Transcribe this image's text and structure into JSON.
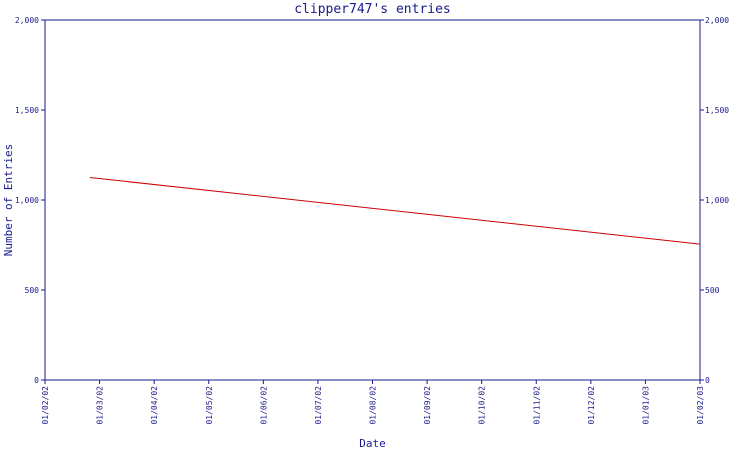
{
  "chart_data": {
    "type": "line",
    "title": "clipper747's entries",
    "xlabel": "Date",
    "ylabel": "Number of Entries",
    "ylim": [
      0,
      2000
    ],
    "yticks": [
      0,
      500,
      1000,
      1500,
      2000
    ],
    "ytick_labels": [
      "0",
      "500",
      "1,000",
      "1,500",
      "2,000"
    ],
    "x_ticks": [
      "01/02/02",
      "01/03/02",
      "01/04/02",
      "01/05/02",
      "01/06/02",
      "01/07/02",
      "01/08/02",
      "01/09/02",
      "01/10/02",
      "01/11/02",
      "01/12/02",
      "01/01/03",
      "01/02/03"
    ],
    "grid": false,
    "colors": {
      "axis": "#1a1a8c",
      "series": "#cc0000"
    },
    "series": [
      {
        "color": "#cc0000",
        "points": [
          {
            "x": "2002-02-24",
            "y": 1125
          },
          {
            "x": "2003-02-01",
            "y": 755
          }
        ]
      }
    ]
  }
}
